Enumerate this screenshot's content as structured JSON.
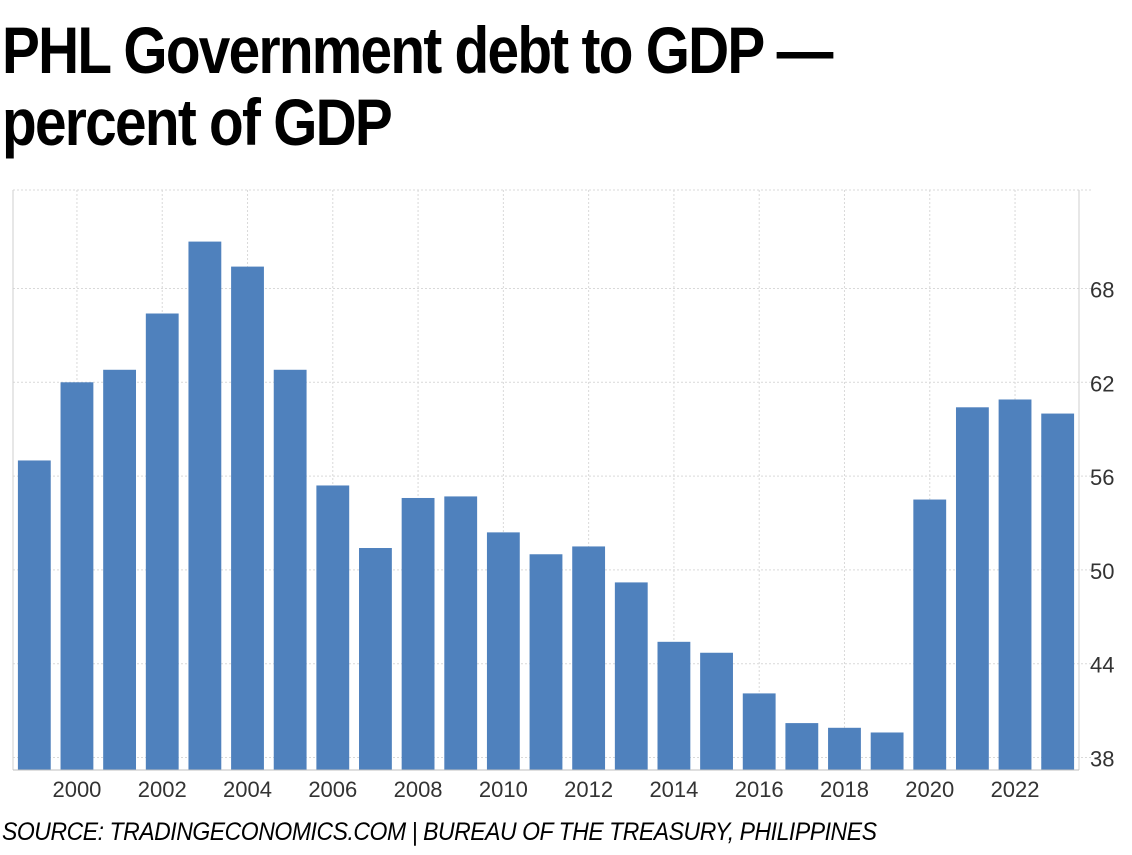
{
  "title_line1": "PHL Government debt to GDP —",
  "title_line2": "percent of GDP",
  "source": "SOURCE: TRADINGECONOMICS.COM | BUREAU OF THE TREASURY, PHILIPPINES",
  "chart_data": {
    "type": "bar",
    "categories": [
      "1999",
      "2000",
      "2001",
      "2002",
      "2003",
      "2004",
      "2005",
      "2006",
      "2007",
      "2008",
      "2009",
      "2010",
      "2011",
      "2012",
      "2013",
      "2014",
      "2015",
      "2016",
      "2017",
      "2018",
      "2019",
      "2020",
      "2021",
      "2022",
      "2023"
    ],
    "x_tick_labels": [
      "2000",
      "2002",
      "2004",
      "2006",
      "2008",
      "2010",
      "2012",
      "2014",
      "2016",
      "2018",
      "2020",
      "2022"
    ],
    "values": [
      57.0,
      62.0,
      62.8,
      66.4,
      71.0,
      69.4,
      62.8,
      55.4,
      51.4,
      54.6,
      54.7,
      52.4,
      51.0,
      51.5,
      49.2,
      45.4,
      44.7,
      42.1,
      40.2,
      39.9,
      39.6,
      54.5,
      60.4,
      60.9,
      60.0
    ],
    "ylim": [
      37.2,
      74.3
    ],
    "y_ticks": [
      38,
      44,
      50,
      56,
      62,
      68
    ],
    "grid": true,
    "y_axis_side": "right",
    "bar_color": "#4f81bd"
  }
}
